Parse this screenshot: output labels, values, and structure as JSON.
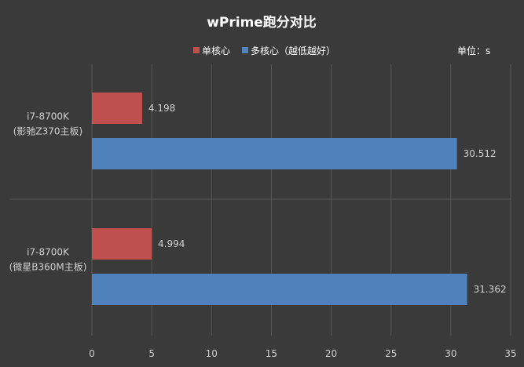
{
  "chart_data": {
    "type": "bar",
    "orientation": "horizontal",
    "title": "wPrime跑分对比",
    "unit_label": "单位：s",
    "categories": [
      [
        "i7-8700K",
        "(影驰Z370主板)"
      ],
      [
        "i7-8700K",
        "(微星B360M主板)"
      ]
    ],
    "series": [
      {
        "name": "单核心",
        "values": [
          4.198,
          4.994
        ],
        "labels": [
          "4.198",
          "4.994"
        ],
        "color": "#c0504d"
      },
      {
        "name": "多核心（越低越好）",
        "values": [
          30.512,
          31.362
        ],
        "labels": [
          "30.512",
          "31.362"
        ],
        "color": "#4f81bd"
      }
    ],
    "xlim": [
      0,
      35
    ],
    "xticks": [
      "0",
      "5",
      "10",
      "15",
      "20",
      "25",
      "30",
      "35"
    ],
    "grid": true,
    "legend": "top-center"
  }
}
